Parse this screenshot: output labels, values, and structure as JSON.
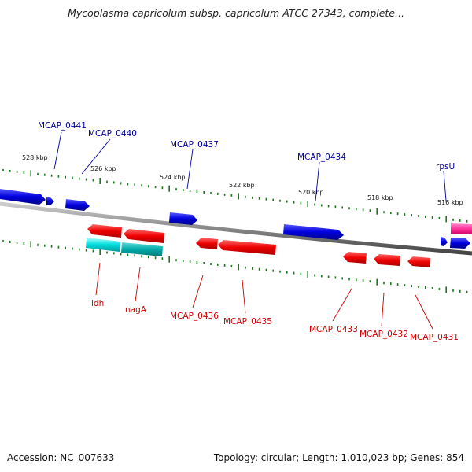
{
  "title": "Mycoplasma capricolum subsp. capricolum ATCC 27343, complete...",
  "footer": {
    "accession": "Accession: NC_007633",
    "summary": "Topology: circular; Length: 1,010,023 bp; Genes: 854"
  },
  "colors": {
    "forward_gene": "#0000dd",
    "reverse_gene": "#ee0000",
    "reverse_gene_cyan": "#00cccc",
    "highlight_gene": "#ff3399",
    "label_forward": "#000099",
    "label_reverse": "#cc0000",
    "tick": "#1a7a1a",
    "backbone": "#888888"
  },
  "scale_labels": [
    "528 kbp",
    "526 kbp",
    "524 kbp",
    "522 kbp",
    "520 kbp",
    "518 kbp",
    "516 kbp"
  ],
  "forward_labels": [
    "MCAP_0441",
    "MCAP_0440",
    "MCAP_0437",
    "MCAP_0434",
    "rpsU"
  ],
  "reverse_labels": [
    "ldh",
    "nagA",
    "MCAP_0436",
    "MCAP_0435",
    "MCAP_0433",
    "MCAP_0432",
    "MCAP_0431"
  ]
}
